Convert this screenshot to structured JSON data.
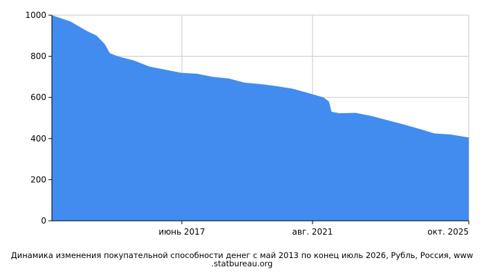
{
  "chart_data": {
    "type": "area",
    "caption": "Динамика изменения покупательной способности денег с май 2013 по конец июль 2026, Рубль, Россия, www .statbureau.org",
    "x_tick_labels": [
      "июнь 2017",
      "авг. 2021",
      "окт. 2025"
    ],
    "y_tick_labels": [
      "0",
      "200",
      "400",
      "600",
      "800",
      "1000"
    ],
    "ylim": [
      0,
      1000
    ],
    "xlim": [
      "2013-05",
      "2026-07"
    ],
    "grid": true,
    "color": "#428cef",
    "x": [
      "2013-05",
      "2013-12",
      "2014-06",
      "2014-10",
      "2015-01",
      "2015-03",
      "2015-06",
      "2015-12",
      "2016-06",
      "2016-12",
      "2017-06",
      "2017-12",
      "2018-06",
      "2018-12",
      "2019-06",
      "2019-12",
      "2020-06",
      "2020-12",
      "2021-06",
      "2021-12",
      "2022-02",
      "2022-03",
      "2022-06",
      "2022-12",
      "2023-06",
      "2023-12",
      "2024-06",
      "2024-12",
      "2025-06",
      "2025-12",
      "2026-07"
    ],
    "values": [
      1000,
      970,
      925,
      900,
      860,
      815,
      800,
      780,
      750,
      735,
      720,
      715,
      700,
      692,
      672,
      665,
      655,
      643,
      622,
      600,
      580,
      530,
      523,
      525,
      510,
      490,
      470,
      448,
      425,
      420,
      405
    ]
  }
}
